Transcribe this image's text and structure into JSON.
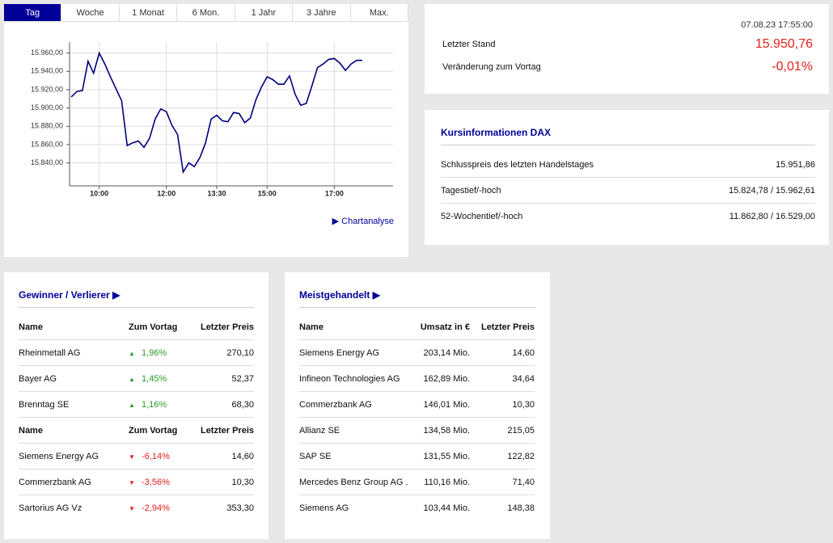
{
  "tabs": [
    "Tag",
    "Woche",
    "1 Monat",
    "6 Mon.",
    "1 Jahr",
    "3 Jahre",
    "Max."
  ],
  "active_tab": 0,
  "chart_data": {
    "type": "line",
    "x": [
      "09:10",
      "09:20",
      "09:30",
      "09:40",
      "09:50",
      "10:00",
      "10:10",
      "10:20",
      "10:30",
      "10:40",
      "10:50",
      "11:00",
      "11:10",
      "11:20",
      "11:30",
      "11:40",
      "11:50",
      "12:00",
      "12:10",
      "12:20",
      "12:30",
      "12:40",
      "12:50",
      "13:00",
      "13:10",
      "13:20",
      "13:30",
      "13:40",
      "13:50",
      "14:00",
      "14:10",
      "14:20",
      "14:30",
      "14:40",
      "14:50",
      "15:00",
      "15:10",
      "15:20",
      "15:30",
      "15:40",
      "15:50",
      "16:00",
      "16:10",
      "16:20",
      "16:30",
      "16:40",
      "16:50",
      "17:00",
      "17:10",
      "17:20",
      "17:30",
      "17:40",
      "17:50"
    ],
    "series": [
      {
        "color": "#000080",
        "values": [
          15912,
          15918,
          15919,
          15951,
          15938,
          15960,
          15948,
          15934,
          15921,
          15908,
          15859,
          15862,
          15864,
          15857,
          15867,
          15888,
          15899,
          15896,
          15881,
          15871,
          15830,
          15840,
          15836,
          15846,
          15862,
          15888,
          15892,
          15886,
          15885,
          15895,
          15894,
          15884,
          15889,
          15909,
          15923,
          15934,
          15931,
          15926,
          15926,
          15935,
          15915,
          15903,
          15905,
          15924,
          15944,
          15948,
          15953,
          15954,
          15949,
          15941,
          15948,
          15952,
          15952
        ]
      }
    ],
    "xlim": [
      "09:07",
      "18:45"
    ],
    "xticks": [
      "10:00",
      "12:00",
      "13:30",
      "15:00",
      "17:00"
    ],
    "ylim": [
      15815,
      15972
    ],
    "yticks": [
      {
        "value": 15840,
        "label": "15.840,00"
      },
      {
        "value": 15860,
        "label": "15.860,00"
      },
      {
        "value": 15880,
        "label": "15.880,00"
      },
      {
        "value": 15900,
        "label": "15.900,00"
      },
      {
        "value": 15920,
        "label": "15.920,00"
      },
      {
        "value": 15940,
        "label": "15.940,00"
      },
      {
        "value": 15960,
        "label": "15.960,00"
      }
    ],
    "grid": true
  },
  "chart_link": "Chartanalyse",
  "quote": {
    "timestamp": "07.08.23 17:55:00",
    "rows": [
      {
        "label": "Letzter Stand",
        "value": "15.950,76"
      },
      {
        "label": "Veränderung zum Vortag",
        "value": "-0,01%"
      }
    ]
  },
  "info": {
    "title": "Kursinformationen DAX",
    "rows": [
      [
        "Schlusspreis des letzten Handelstages",
        "15.951,86"
      ],
      [
        "Tagestief/-hoch",
        "15.824,78 / 15.962,61"
      ],
      [
        "52-Wochentief/-hoch",
        "11.862,80 / 16.529,00"
      ]
    ]
  },
  "movers": {
    "title": "Gewinner / Verlierer",
    "tables": [
      {
        "direction": "up",
        "header": [
          "Name",
          "Zum Vortag",
          "Letzter Preis"
        ],
        "rows": [
          [
            "Rheinmetall AG",
            "1,96%",
            "270,10"
          ],
          [
            "Bayer AG",
            "1,45%",
            "52,37"
          ],
          [
            "Brenntag SE",
            "1,16%",
            "68,30"
          ]
        ]
      },
      {
        "direction": "down",
        "header": [
          "Name",
          "Zum Vortag",
          "Letzter Preis"
        ],
        "rows": [
          [
            "Siemens Energy AG",
            "-6,14%",
            "14,60"
          ],
          [
            "Commerzbank AG",
            "-3,56%",
            "10,30"
          ],
          [
            "Sartorius AG Vz",
            "-2,94%",
            "353,30"
          ]
        ]
      }
    ]
  },
  "most_traded": {
    "title": "Meistgehandelt",
    "header": [
      "Name",
      "Umsatz in €",
      "Letzter Preis"
    ],
    "rows": [
      [
        "Siemens Energy AG",
        "203,14 Mio.",
        "14,60"
      ],
      [
        "Infineon Technologies AG",
        "162,89 Mio.",
        "34,64"
      ],
      [
        "Commerzbank AG",
        "146,01 Mio.",
        "10,30"
      ],
      [
        "Allianz SE",
        "134,58 Mio.",
        "215,05"
      ],
      [
        "SAP SE",
        "131,55 Mio.",
        "122,82"
      ],
      [
        "Mercedes Benz Group AG ...",
        "110,16 Mio.",
        "71,40"
      ],
      [
        "Siemens AG",
        "103,44 Mio.",
        "148,38"
      ]
    ]
  }
}
